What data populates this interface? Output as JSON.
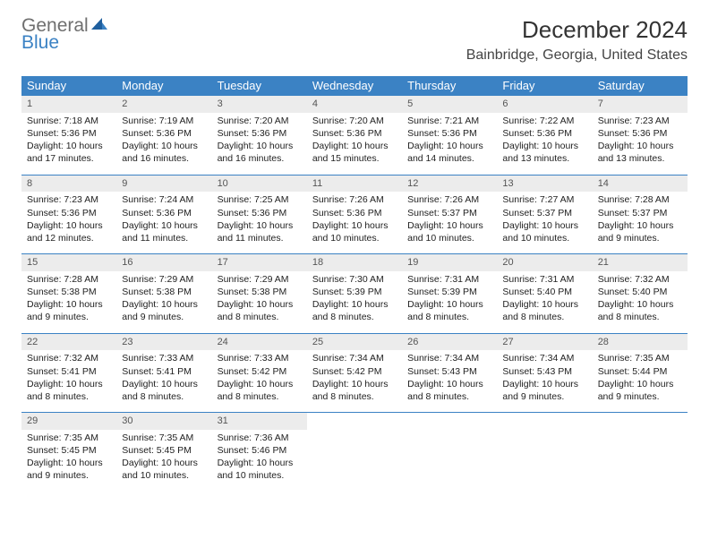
{
  "logo": {
    "text1": "General",
    "text2": "Blue"
  },
  "title": "December 2024",
  "location": "Bainbridge, Georgia, United States",
  "colors": {
    "header_bg": "#3b82c4",
    "daynum_bg": "#ececec",
    "border": "#3b82c4"
  },
  "weekdays": [
    "Sunday",
    "Monday",
    "Tuesday",
    "Wednesday",
    "Thursday",
    "Friday",
    "Saturday"
  ],
  "weeks": [
    [
      {
        "n": "1",
        "sunrise": "7:18 AM",
        "sunset": "5:36 PM",
        "daylight": "10 hours and 17 minutes."
      },
      {
        "n": "2",
        "sunrise": "7:19 AM",
        "sunset": "5:36 PM",
        "daylight": "10 hours and 16 minutes."
      },
      {
        "n": "3",
        "sunrise": "7:20 AM",
        "sunset": "5:36 PM",
        "daylight": "10 hours and 16 minutes."
      },
      {
        "n": "4",
        "sunrise": "7:20 AM",
        "sunset": "5:36 PM",
        "daylight": "10 hours and 15 minutes."
      },
      {
        "n": "5",
        "sunrise": "7:21 AM",
        "sunset": "5:36 PM",
        "daylight": "10 hours and 14 minutes."
      },
      {
        "n": "6",
        "sunrise": "7:22 AM",
        "sunset": "5:36 PM",
        "daylight": "10 hours and 13 minutes."
      },
      {
        "n": "7",
        "sunrise": "7:23 AM",
        "sunset": "5:36 PM",
        "daylight": "10 hours and 13 minutes."
      }
    ],
    [
      {
        "n": "8",
        "sunrise": "7:23 AM",
        "sunset": "5:36 PM",
        "daylight": "10 hours and 12 minutes."
      },
      {
        "n": "9",
        "sunrise": "7:24 AM",
        "sunset": "5:36 PM",
        "daylight": "10 hours and 11 minutes."
      },
      {
        "n": "10",
        "sunrise": "7:25 AM",
        "sunset": "5:36 PM",
        "daylight": "10 hours and 11 minutes."
      },
      {
        "n": "11",
        "sunrise": "7:26 AM",
        "sunset": "5:36 PM",
        "daylight": "10 hours and 10 minutes."
      },
      {
        "n": "12",
        "sunrise": "7:26 AM",
        "sunset": "5:37 PM",
        "daylight": "10 hours and 10 minutes."
      },
      {
        "n": "13",
        "sunrise": "7:27 AM",
        "sunset": "5:37 PM",
        "daylight": "10 hours and 10 minutes."
      },
      {
        "n": "14",
        "sunrise": "7:28 AM",
        "sunset": "5:37 PM",
        "daylight": "10 hours and 9 minutes."
      }
    ],
    [
      {
        "n": "15",
        "sunrise": "7:28 AM",
        "sunset": "5:38 PM",
        "daylight": "10 hours and 9 minutes."
      },
      {
        "n": "16",
        "sunrise": "7:29 AM",
        "sunset": "5:38 PM",
        "daylight": "10 hours and 9 minutes."
      },
      {
        "n": "17",
        "sunrise": "7:29 AM",
        "sunset": "5:38 PM",
        "daylight": "10 hours and 8 minutes."
      },
      {
        "n": "18",
        "sunrise": "7:30 AM",
        "sunset": "5:39 PM",
        "daylight": "10 hours and 8 minutes."
      },
      {
        "n": "19",
        "sunrise": "7:31 AM",
        "sunset": "5:39 PM",
        "daylight": "10 hours and 8 minutes."
      },
      {
        "n": "20",
        "sunrise": "7:31 AM",
        "sunset": "5:40 PM",
        "daylight": "10 hours and 8 minutes."
      },
      {
        "n": "21",
        "sunrise": "7:32 AM",
        "sunset": "5:40 PM",
        "daylight": "10 hours and 8 minutes."
      }
    ],
    [
      {
        "n": "22",
        "sunrise": "7:32 AM",
        "sunset": "5:41 PM",
        "daylight": "10 hours and 8 minutes."
      },
      {
        "n": "23",
        "sunrise": "7:33 AM",
        "sunset": "5:41 PM",
        "daylight": "10 hours and 8 minutes."
      },
      {
        "n": "24",
        "sunrise": "7:33 AM",
        "sunset": "5:42 PM",
        "daylight": "10 hours and 8 minutes."
      },
      {
        "n": "25",
        "sunrise": "7:34 AM",
        "sunset": "5:42 PM",
        "daylight": "10 hours and 8 minutes."
      },
      {
        "n": "26",
        "sunrise": "7:34 AM",
        "sunset": "5:43 PM",
        "daylight": "10 hours and 8 minutes."
      },
      {
        "n": "27",
        "sunrise": "7:34 AM",
        "sunset": "5:43 PM",
        "daylight": "10 hours and 9 minutes."
      },
      {
        "n": "28",
        "sunrise": "7:35 AM",
        "sunset": "5:44 PM",
        "daylight": "10 hours and 9 minutes."
      }
    ],
    [
      {
        "n": "29",
        "sunrise": "7:35 AM",
        "sunset": "5:45 PM",
        "daylight": "10 hours and 9 minutes."
      },
      {
        "n": "30",
        "sunrise": "7:35 AM",
        "sunset": "5:45 PM",
        "daylight": "10 hours and 10 minutes."
      },
      {
        "n": "31",
        "sunrise": "7:36 AM",
        "sunset": "5:46 PM",
        "daylight": "10 hours and 10 minutes."
      },
      null,
      null,
      null,
      null
    ]
  ],
  "labels": {
    "sunrise": "Sunrise:",
    "sunset": "Sunset:",
    "daylight": "Daylight:"
  }
}
